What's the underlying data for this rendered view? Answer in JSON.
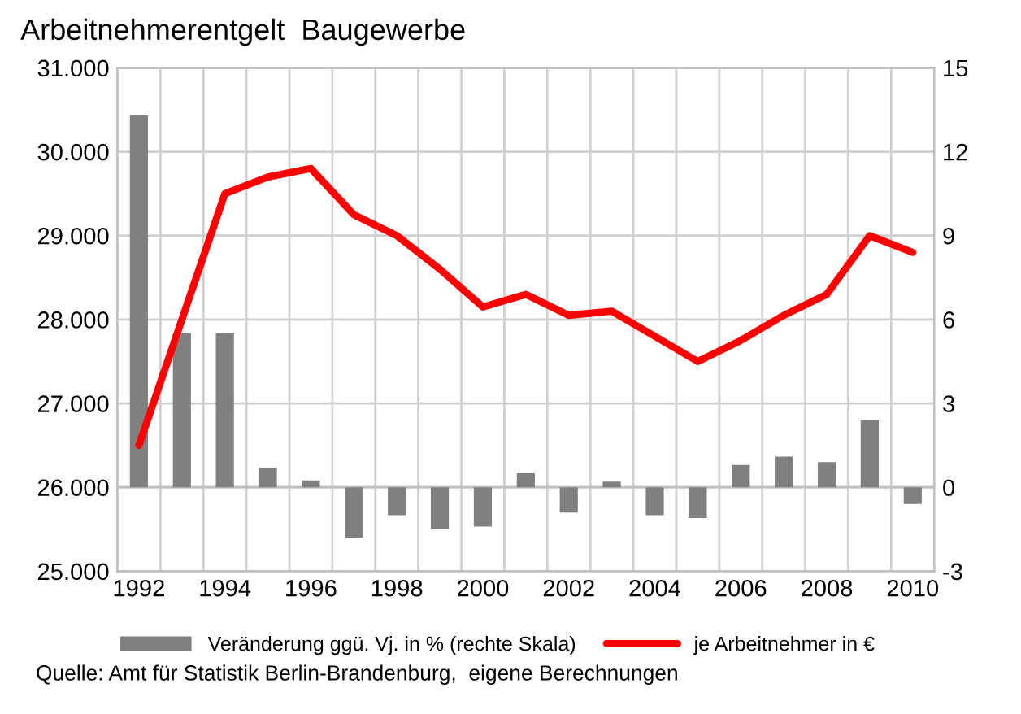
{
  "chart_data": {
    "type": "bar",
    "title": "Arbeitnehmerentgelt  Baugewerbe",
    "categories": [
      "1992",
      null,
      "1994",
      null,
      "1996",
      null,
      "1998",
      null,
      "2000",
      null,
      "2002",
      null,
      "2004",
      null,
      "2006",
      null,
      "2008",
      null,
      "2010"
    ],
    "series": [
      {
        "name": "Veränderung ggü. Vj. in % (rechte Skala)",
        "type": "bar",
        "axis": "y2",
        "color": "#808080",
        "values": [
          13.3,
          5.5,
          5.5,
          0.7,
          0.25,
          -1.8,
          -1.0,
          -1.5,
          -1.4,
          0.5,
          -0.9,
          0.2,
          -1.0,
          -1.1,
          0.8,
          1.1,
          0.9,
          2.4,
          -0.6
        ]
      },
      {
        "name": "je Arbeitnehmer in €",
        "type": "line",
        "color": "#ff0000",
        "values": [
          26500,
          28000,
          29500,
          29700,
          29800,
          29250,
          29000,
          28600,
          28150,
          28300,
          28050,
          28100,
          27800,
          27500,
          27750,
          28050,
          28300,
          29000,
          28800
        ]
      }
    ],
    "ylim": [
      25000,
      31000
    ],
    "yticks": [
      {
        "value": 25000,
        "label": "25.000"
      },
      {
        "value": 26000,
        "label": "26.000"
      },
      {
        "value": 27000,
        "label": "27.000"
      },
      {
        "value": 28000,
        "label": "28.000"
      },
      {
        "value": 29000,
        "label": "29.000"
      },
      {
        "value": 30000,
        "label": "30.000"
      },
      {
        "value": 31000,
        "label": "31.000"
      }
    ],
    "y2lim": [
      -3,
      15
    ],
    "y2ticks": [
      -3,
      0,
      3,
      6,
      9,
      12,
      15
    ],
    "grid": true,
    "legend": "bottom",
    "marker": "none",
    "line_style": "solid",
    "annotations": [
      "Quelle: Amt für Statistik Berlin-Brandenburg,  eigene Berechnungen"
    ]
  }
}
